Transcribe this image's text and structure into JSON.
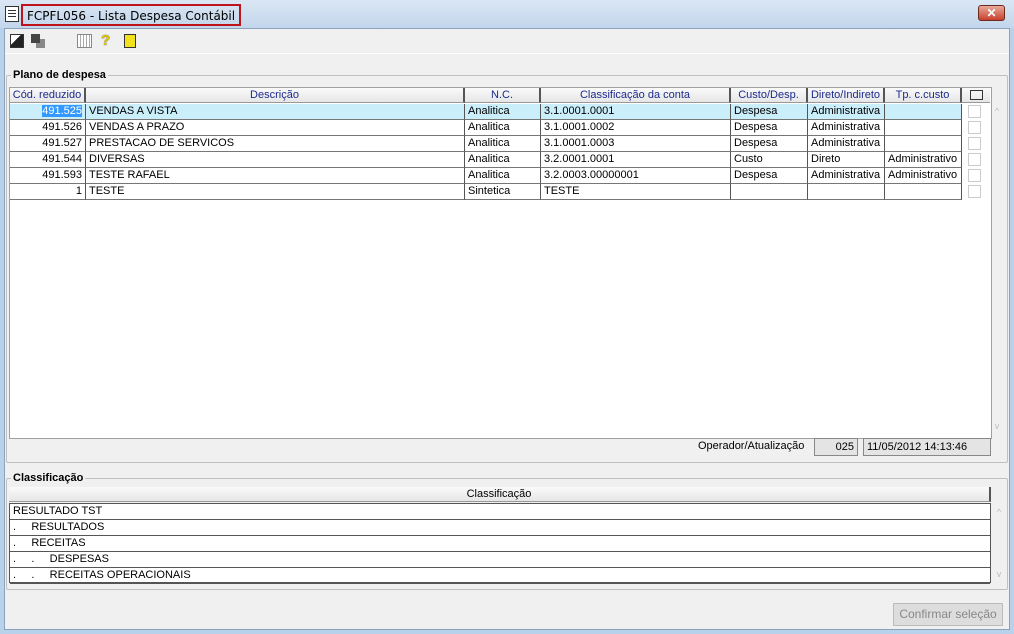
{
  "window": {
    "title": "FCPFL056 - Lista Despesa Contábil",
    "close": "✕"
  },
  "toolbar": {
    "icons": [
      "export-icon",
      "copy-icon",
      "calendar-icon",
      "help-icon",
      "exit-door-icon"
    ]
  },
  "plano": {
    "legend": "Plano de despesa",
    "columns": [
      "Cód. reduzido",
      "Descrição",
      "N.C.",
      "Classificação da conta",
      "Custo/Desp.",
      "Direto/Indireto",
      "Tp. c.custo"
    ],
    "rows": [
      [
        "491.525",
        "VENDAS A VISTA",
        "Analitica",
        "3.1.0001.0001",
        "Despesa",
        "Administrativa",
        ""
      ],
      [
        "491.526",
        "VENDAS A PRAZO",
        "Analitica",
        "3.1.0001.0002",
        "Despesa",
        "Administrativa",
        ""
      ],
      [
        "491.527",
        "PRESTACAO DE SERVICOS",
        "Analitica",
        "3.1.0001.0003",
        "Despesa",
        "Administrativa",
        ""
      ],
      [
        "491.544",
        "DIVERSAS",
        "Analitica",
        "3.2.0001.0001",
        "Custo",
        "Direto",
        "Administrativo"
      ],
      [
        "491.593",
        "TESTE RAFAEL",
        "Analitica",
        "3.2.0003.00000001",
        "Despesa",
        "Administrativa",
        "Administrativo"
      ],
      [
        "1",
        "TESTE",
        "Sintetica",
        "TESTE",
        "",
        "",
        ""
      ]
    ],
    "selected_row": 0,
    "operador_label": "Operador/Atualização",
    "operador": "025",
    "atualizacao": "11/05/2012 14:13:46"
  },
  "classificacao": {
    "legend": "Classificação",
    "column": "Classificação",
    "rows": [
      "RESULTADO TST",
      ".     RESULTADOS",
      ".     RECEITAS",
      ".     .     DESPESAS",
      ".     .     RECEITAS OPERACIONAIS"
    ]
  },
  "confirm_label": "Confirmar seleção"
}
